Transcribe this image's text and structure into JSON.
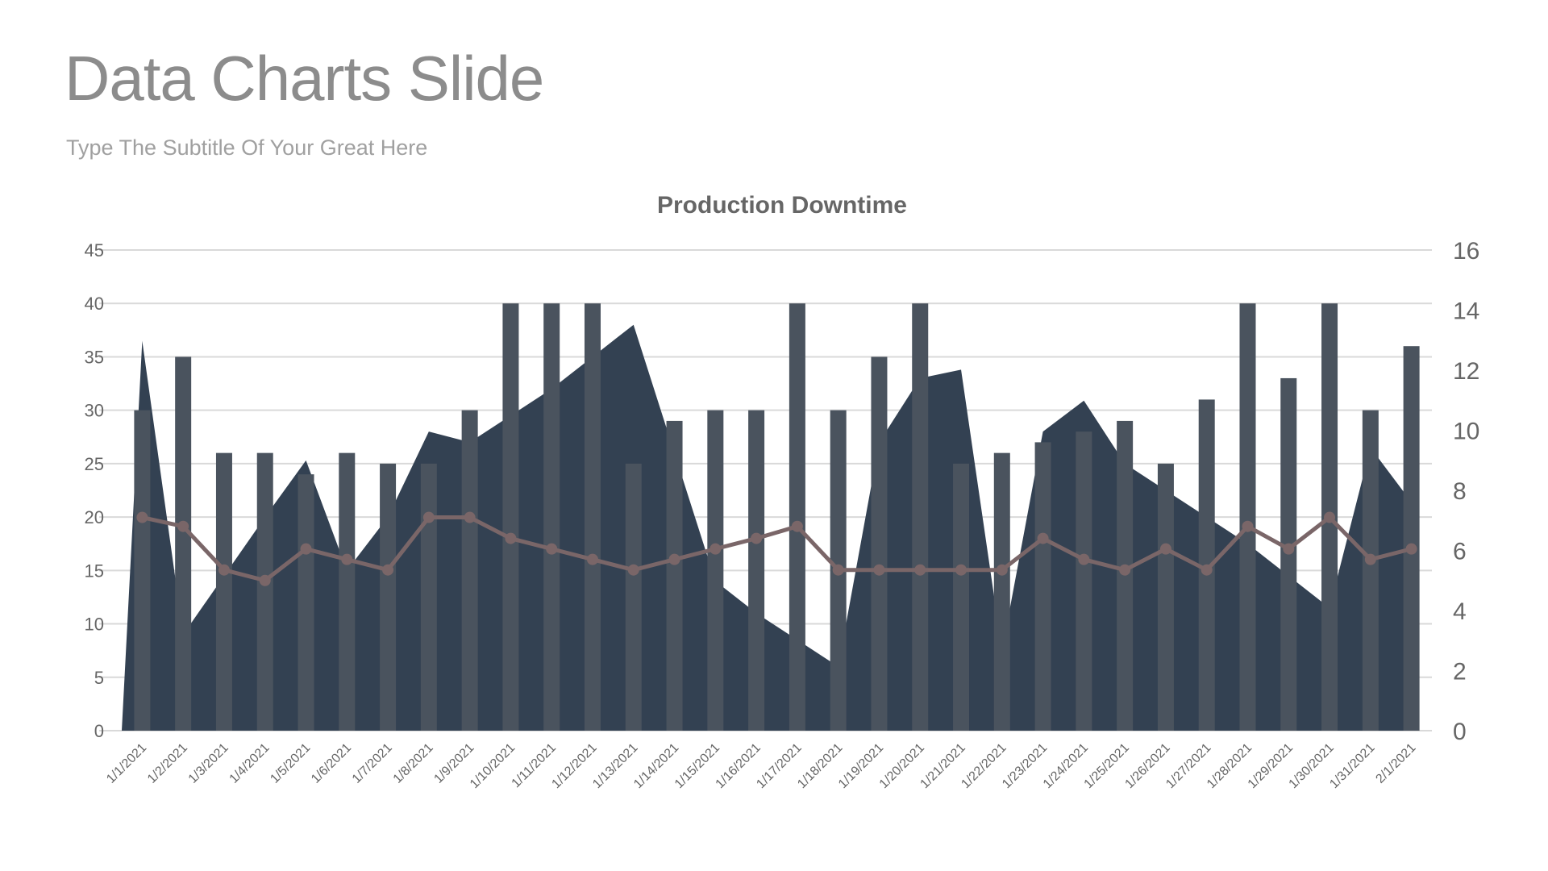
{
  "slide": {
    "title": "Data Charts Slide",
    "subtitle": "Type The Subtitle Of Your Great Here"
  },
  "chart_data": {
    "type": "bar",
    "title": "Production Downtime",
    "xlabel": "",
    "ylabel": "",
    "ylim": [
      0,
      45
    ],
    "y_ticks": [
      "0",
      "5",
      "10",
      "15",
      "20",
      "25",
      "30",
      "35",
      "40",
      "45"
    ],
    "y2lim": [
      0,
      16
    ],
    "y2_ticks": [
      "0",
      "2",
      "4",
      "6",
      "8",
      "10",
      "12",
      "14",
      "16"
    ],
    "grid": true,
    "legend": "none",
    "categories": [
      "1/1/2021",
      "1/2/2021",
      "1/3/2021",
      "1/4/2021",
      "1/5/2021",
      "1/6/2021",
      "1/7/2021",
      "1/8/2021",
      "1/9/2021",
      "1/10/2021",
      "1/11/2021",
      "1/12/2021",
      "1/13/2021",
      "1/14/2021",
      "1/15/2021",
      "1/16/2021",
      "1/17/2021",
      "1/18/2021",
      "1/19/2021",
      "1/20/2021",
      "1/21/2021",
      "1/22/2021",
      "1/23/2021",
      "1/24/2021",
      "1/25/2021",
      "1/26/2021",
      "1/27/2021",
      "1/28/2021",
      "1/29/2021",
      "1/30/2021",
      "1/31/2021",
      "2/1/2021"
    ],
    "series": [
      {
        "type": "area",
        "axis": "left",
        "color": "#334152",
        "values": [
          36.5,
          9,
          14.5,
          20,
          25.3,
          15,
          20,
          28,
          27,
          29.5,
          32,
          35,
          38,
          26,
          14,
          11,
          8.5,
          6,
          27,
          33,
          33.8,
          7.5,
          28,
          30.9,
          25,
          22.5,
          20,
          17.5,
          14.5,
          11.5,
          26.5,
          21.4
        ]
      },
      {
        "type": "bar",
        "axis": "left",
        "color": "#4a535e",
        "values": [
          30,
          35,
          26,
          26,
          24,
          26,
          25,
          25,
          30,
          40,
          40,
          40,
          25,
          29,
          30,
          30,
          40,
          30,
          35,
          40,
          25,
          26,
          27,
          28,
          29,
          25,
          31,
          40,
          33,
          40,
          30,
          36
        ]
      },
      {
        "type": "line",
        "axis": "right",
        "color": "#7a6668",
        "values": [
          7.1,
          6.8,
          5.35,
          5.0,
          6.05,
          5.7,
          5.35,
          7.1,
          7.1,
          6.4,
          6.05,
          5.7,
          5.35,
          5.7,
          6.05,
          6.4,
          6.8,
          5.35,
          5.35,
          5.35,
          5.35,
          5.35,
          6.4,
          5.7,
          5.35,
          6.05,
          5.35,
          6.8,
          6.05,
          7.1,
          5.7,
          6.05
        ]
      }
    ]
  }
}
